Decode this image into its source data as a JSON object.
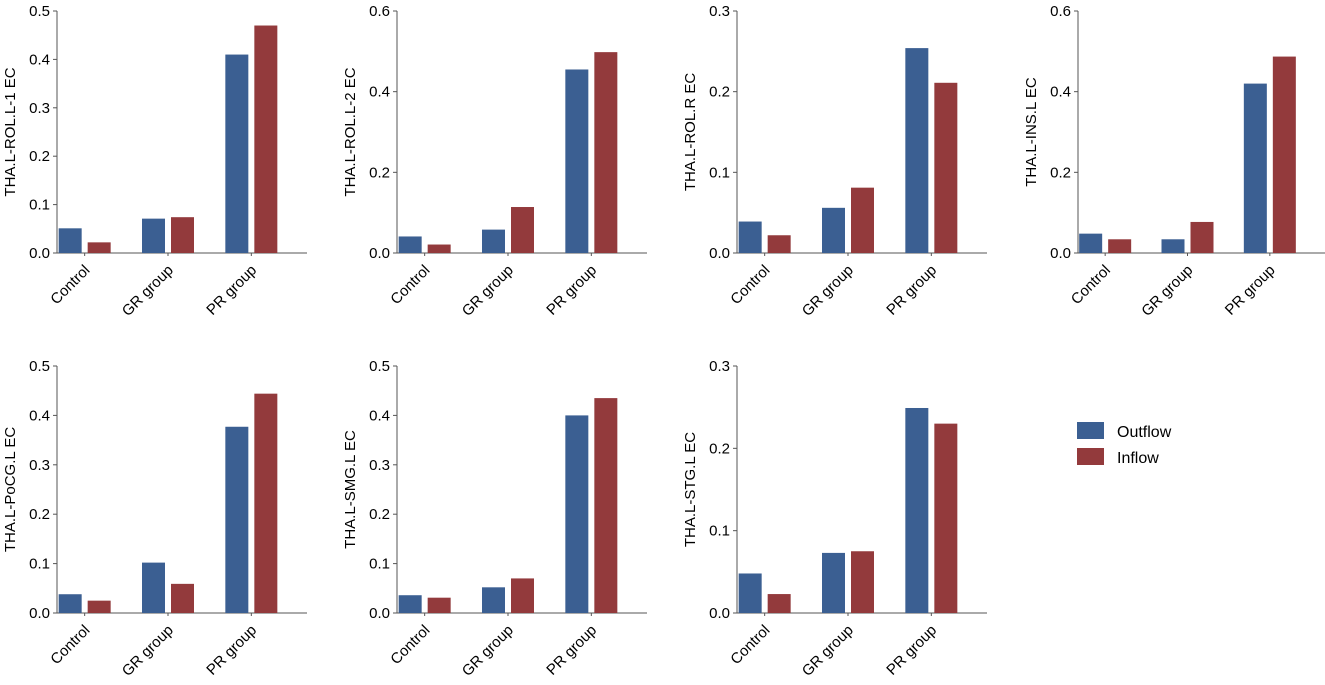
{
  "legend": {
    "items": [
      {
        "label": "Outflow",
        "color": "#3b5f92"
      },
      {
        "label": "Inflow",
        "color": "#933a3c"
      }
    ]
  },
  "chart_data": [
    {
      "type": "bar",
      "ylabel": "THA.L-ROL.L-1 EC",
      "categories": [
        "Control",
        "GR group",
        "PR group"
      ],
      "ylim": [
        0,
        0.5
      ],
      "yticks": [
        "0.0",
        "0.1",
        "0.2",
        "0.3",
        "0.4",
        "0.5"
      ],
      "series": [
        {
          "name": "Outflow",
          "values": [
            0.051,
            0.071,
            0.41
          ]
        },
        {
          "name": "Inflow",
          "values": [
            0.022,
            0.074,
            0.47
          ]
        }
      ]
    },
    {
      "type": "bar",
      "ylabel": "THA.L-ROL.L-2 EC",
      "categories": [
        "Control",
        "GR group",
        "PR group"
      ],
      "ylim": [
        0,
        0.6
      ],
      "yticks": [
        "0.0",
        "0.2",
        "0.4",
        "0.6"
      ],
      "series": [
        {
          "name": "Outflow",
          "values": [
            0.041,
            0.058,
            0.455
          ]
        },
        {
          "name": "Inflow",
          "values": [
            0.021,
            0.114,
            0.498
          ]
        }
      ]
    },
    {
      "type": "bar",
      "ylabel": "THA.L-ROL.R EC",
      "categories": [
        "Control",
        "GR group",
        "PR group"
      ],
      "ylim": [
        0,
        0.3
      ],
      "yticks": [
        "0.0",
        "0.1",
        "0.2",
        "0.3"
      ],
      "series": [
        {
          "name": "Outflow",
          "values": [
            0.039,
            0.056,
            0.254
          ]
        },
        {
          "name": "Inflow",
          "values": [
            0.022,
            0.081,
            0.211
          ]
        }
      ]
    },
    {
      "type": "bar",
      "ylabel": "THA.L-INS.L EC",
      "categories": [
        "Control",
        "GR group",
        "PR group"
      ],
      "ylim": [
        0,
        0.6
      ],
      "yticks": [
        "0.0",
        "0.2",
        "0.4",
        "0.6"
      ],
      "series": [
        {
          "name": "Outflow",
          "values": [
            0.048,
            0.034,
            0.42
          ]
        },
        {
          "name": "Inflow",
          "values": [
            0.034,
            0.077,
            0.487
          ]
        }
      ]
    },
    {
      "type": "bar",
      "ylabel": "THA.L-PoCG.L EC",
      "categories": [
        "Control",
        "GR group",
        "PR group"
      ],
      "ylim": [
        0,
        0.5
      ],
      "yticks": [
        "0.0",
        "0.1",
        "0.2",
        "0.3",
        "0.4",
        "0.5"
      ],
      "series": [
        {
          "name": "Outflow",
          "values": [
            0.038,
            0.102,
            0.377
          ]
        },
        {
          "name": "Inflow",
          "values": [
            0.025,
            0.059,
            0.444
          ]
        }
      ]
    },
    {
      "type": "bar",
      "ylabel": "THA.L-SMG.L EC",
      "categories": [
        "Control",
        "GR group",
        "PR group"
      ],
      "ylim": [
        0,
        0.5
      ],
      "yticks": [
        "0.0",
        "0.1",
        "0.2",
        "0.3",
        "0.4",
        "0.5"
      ],
      "series": [
        {
          "name": "Outflow",
          "values": [
            0.036,
            0.052,
            0.4
          ]
        },
        {
          "name": "Inflow",
          "values": [
            0.031,
            0.07,
            0.435
          ]
        }
      ]
    },
    {
      "type": "bar",
      "ylabel": "THA.L-STG.L EC",
      "categories": [
        "Control",
        "GR group",
        "PR group"
      ],
      "ylim": [
        0,
        0.3
      ],
      "yticks": [
        "0.0",
        "0.1",
        "0.2",
        "0.3"
      ],
      "series": [
        {
          "name": "Outflow",
          "values": [
            0.048,
            0.073,
            0.249
          ]
        },
        {
          "name": "Inflow",
          "values": [
            0.023,
            0.075,
            0.23
          ]
        }
      ]
    }
  ]
}
